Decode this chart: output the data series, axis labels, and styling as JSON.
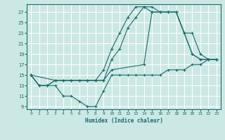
{
  "xlabel": "Humidex (Indice chaleur)",
  "bg_color": "#cce8e4",
  "line_color": "#1a6b6b",
  "grid_color": "#ffffff",
  "xlim": [
    -0.5,
    23.5
  ],
  "ylim": [
    8.5,
    28.5
  ],
  "xticks": [
    0,
    1,
    2,
    3,
    4,
    5,
    6,
    7,
    8,
    9,
    10,
    11,
    12,
    13,
    14,
    15,
    16,
    17,
    18,
    19,
    20,
    21,
    22,
    23
  ],
  "yticks": [
    9,
    11,
    13,
    15,
    17,
    19,
    21,
    23,
    25,
    27
  ],
  "lines": [
    {
      "x": [
        0,
        1,
        2,
        3,
        4,
        5,
        6,
        7,
        8,
        9,
        10,
        11,
        12,
        13,
        14,
        15,
        16,
        17,
        18,
        19,
        20,
        21,
        22,
        23
      ],
      "y": [
        15,
        13,
        13,
        13,
        11,
        11,
        10,
        9,
        9,
        12,
        15,
        15,
        15,
        15,
        15,
        15,
        15,
        16,
        16,
        16,
        17,
        17,
        18,
        18
      ]
    },
    {
      "x": [
        0,
        1,
        2,
        3,
        4,
        5,
        6,
        7,
        8,
        9,
        10,
        11,
        12,
        13,
        14,
        15,
        16,
        17,
        18,
        19,
        20,
        21,
        22,
        23
      ],
      "y": [
        15,
        13,
        13,
        14,
        14,
        14,
        14,
        14,
        14,
        14,
        18,
        20,
        24,
        26,
        28,
        28,
        27,
        27,
        27,
        23,
        19,
        18,
        18,
        18
      ]
    },
    {
      "x": [
        0,
        1,
        2,
        3,
        4,
        5,
        6,
        7,
        8,
        9,
        10,
        11,
        12,
        13,
        14,
        15,
        16,
        17,
        18,
        19,
        20,
        21,
        22,
        23
      ],
      "y": [
        15,
        13,
        13,
        14,
        14,
        14,
        14,
        14,
        14,
        16,
        20,
        23,
        26,
        28,
        28,
        27,
        27,
        27,
        27,
        23,
        19,
        18,
        18,
        18
      ]
    },
    {
      "x": [
        0,
        3,
        9,
        10,
        14,
        15,
        16,
        17,
        18,
        19,
        20,
        21,
        22,
        23
      ],
      "y": [
        15,
        14,
        14,
        16,
        17,
        27,
        27,
        27,
        27,
        23,
        23,
        19,
        18,
        18
      ]
    }
  ]
}
